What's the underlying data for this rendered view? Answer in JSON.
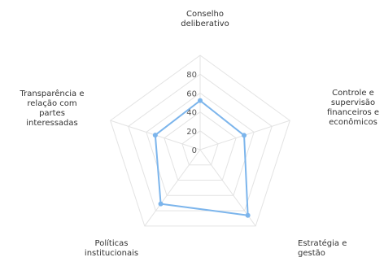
{
  "chart_data": {
    "type": "radar",
    "categories": [
      [
        "Conselho",
        "deliberativo"
      ],
      [
        "Controle e",
        "supervisão",
        "financeiros e",
        "econômicos"
      ],
      [
        "Estratégia e",
        "gestão"
      ],
      [
        "Políticas",
        "institucionais"
      ],
      [
        "Transparência e",
        "relação com",
        "partes",
        "interessadas"
      ]
    ],
    "series": [
      {
        "values": [
          52,
          49,
          86,
          71,
          50
        ],
        "color": "#7cb5ec"
      }
    ],
    "rlim": [
      0,
      100
    ],
    "ticks": [
      "0",
      "20",
      "40",
      "60",
      "80"
    ],
    "tick_values": [
      0,
      20,
      40,
      60,
      80
    ],
    "grid_levels": [
      20,
      40,
      60,
      80,
      100
    ],
    "grid": true,
    "legend": "none"
  }
}
